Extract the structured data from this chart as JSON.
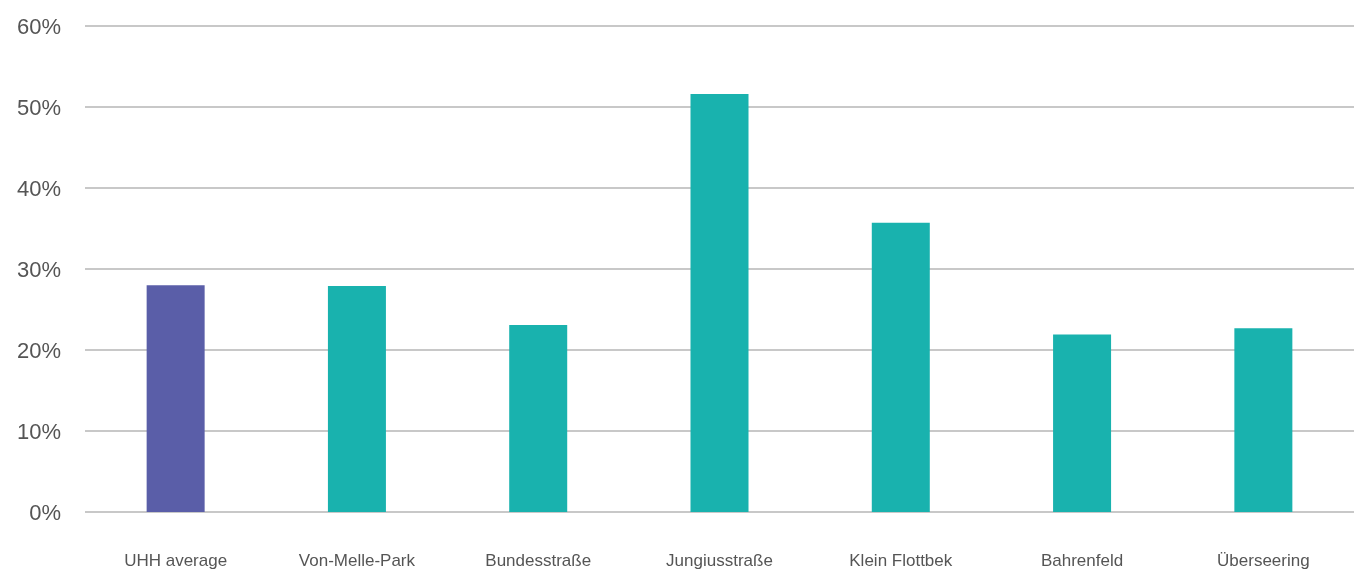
{
  "chart_data": {
    "type": "bar",
    "categories": [
      "UHH average",
      "Von-Melle-Park",
      "Bundesstraße",
      "Jungiusstraße",
      "Klein Flottbek",
      "Bahrenfeld",
      "Überseering"
    ],
    "values": [
      28,
      27.9,
      23.1,
      51.6,
      35.7,
      21.9,
      22.7
    ],
    "colors": [
      "#5a5ea8",
      "#19b2ae",
      "#19b2ae",
      "#19b2ae",
      "#19b2ae",
      "#19b2ae",
      "#19b2ae"
    ],
    "ylim": [
      0,
      60
    ],
    "yticks": [
      {
        "value": 0,
        "label": "0%"
      },
      {
        "value": 10,
        "label": "10%"
      },
      {
        "value": 20,
        "label": "20%"
      },
      {
        "value": 30,
        "label": "30%"
      },
      {
        "value": 40,
        "label": "40%"
      },
      {
        "value": 50,
        "label": "50%"
      },
      {
        "value": 60,
        "label": "60%"
      }
    ],
    "grid": true
  }
}
